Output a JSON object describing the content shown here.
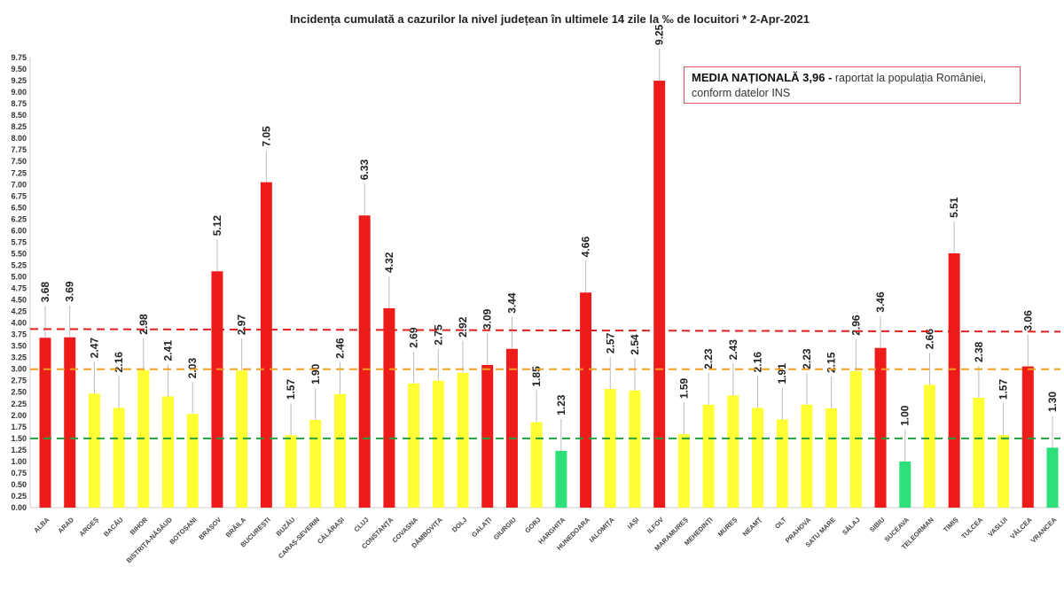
{
  "chart_data": {
    "type": "bar",
    "title": "Incidența cumulată a cazurilor la nivel județean în ultimele 14 zile la ‰ de locuitori * 2-Apr-2021",
    "categories": [
      "ALBA",
      "ARAD",
      "ARGEȘ",
      "BACĂU",
      "BIHOR",
      "BISTRIȚA-NĂSĂUD",
      "BOTOȘANI",
      "BRAȘOV",
      "BRĂILA",
      "BUCUREȘTI",
      "BUZĂU",
      "CARAȘ-SEVERIN",
      "CĂLĂRAȘI",
      "CLUJ",
      "CONSTANȚA",
      "COVASNA",
      "DÂMBOVIȚA",
      "DOLJ",
      "GALAȚI",
      "GIURGIU",
      "GORJ",
      "HARGHITA",
      "HUNEDOARA",
      "IALOMIȚA",
      "IAȘI",
      "ILFOV",
      "MARAMUREȘ",
      "MEHEDINȚI",
      "MUREȘ",
      "NEAMȚ",
      "OLT",
      "PRAHOVA",
      "SATU MARE",
      "SĂLAJ",
      "SIBIU",
      "SUCEAVA",
      "TELEORMAN",
      "TIMIȘ",
      "TULCEA",
      "VASLUI",
      "VÂLCEA",
      "VRANCEA"
    ],
    "values": [
      3.68,
      3.69,
      2.47,
      2.16,
      2.98,
      2.41,
      2.03,
      5.12,
      2.97,
      7.05,
      1.57,
      1.9,
      2.46,
      6.33,
      4.32,
      2.69,
      2.75,
      2.92,
      3.09,
      3.44,
      1.85,
      1.23,
      4.66,
      2.57,
      2.54,
      9.25,
      1.59,
      2.23,
      2.43,
      2.16,
      1.91,
      2.23,
      2.15,
      2.96,
      3.46,
      1.0,
      2.66,
      5.51,
      2.38,
      1.57,
      3.06,
      1.3
    ],
    "ylim": [
      0,
      9.75
    ],
    "ytick_step": 0.25,
    "grid": false,
    "colors": {
      "red": "#ee1b1b",
      "yellow": "#ffff33",
      "green": "#2ee07a"
    },
    "thresholds": [
      {
        "value": 3.85,
        "color": "#e02020"
      },
      {
        "value": 3.0,
        "color": "#f0a020"
      },
      {
        "value": 1.5,
        "color": "#20a040"
      }
    ],
    "annotation": {
      "bold": "MEDIA NAȚIONALĂ  3,96 -",
      "text": " raportat la populația României, conform datelor INS"
    }
  }
}
